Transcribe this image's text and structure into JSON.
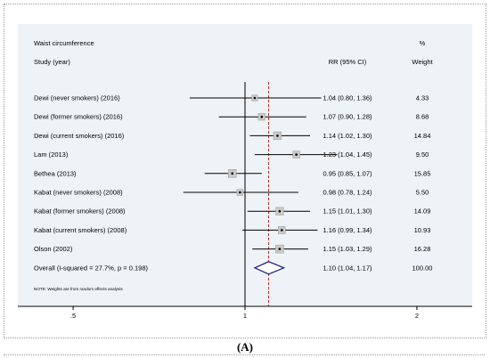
{
  "chart_data": {
    "type": "forest",
    "title": "Waist circumference",
    "columns": {
      "study": "Study (year)",
      "rr": "RR (95% CI)",
      "weight_header_top": "%",
      "weight_header": "Weight"
    },
    "studies": [
      {
        "label": "Dewi (never smokers) (2016)",
        "rr": 1.04,
        "lo": 0.8,
        "hi": 1.36,
        "ci_text": "1.04 (0.80, 1.36)",
        "weight": "4.33"
      },
      {
        "label": "Dewi (former smokers) (2016)",
        "rr": 1.07,
        "lo": 0.9,
        "hi": 1.28,
        "ci_text": "1.07 (0.90, 1.28)",
        "weight": "8.68"
      },
      {
        "label": "Dewi (current smokers) (2016)",
        "rr": 1.14,
        "lo": 1.02,
        "hi": 1.3,
        "ci_text": "1.14 (1.02, 1.30)",
        "weight": "14.84"
      },
      {
        "label": "Lam (2013)",
        "rr": 1.23,
        "lo": 1.04,
        "hi": 1.45,
        "ci_text": "1.23 (1.04, 1.45)",
        "weight": "9.50"
      },
      {
        "label": "Bethea (2013)",
        "rr": 0.95,
        "lo": 0.85,
        "hi": 1.07,
        "ci_text": "0.95 (0.85, 1.07)",
        "weight": "15.85"
      },
      {
        "label": "Kabat (never smokers) (2008)",
        "rr": 0.98,
        "lo": 0.78,
        "hi": 1.24,
        "ci_text": "0.98 (0.78, 1.24)",
        "weight": "5.50"
      },
      {
        "label": "Kabat (former smokers) (2008)",
        "rr": 1.15,
        "lo": 1.01,
        "hi": 1.3,
        "ci_text": "1.15 (1.01, 1.30)",
        "weight": "14.09"
      },
      {
        "label": "Kabat (current smokers) (2008)",
        "rr": 1.16,
        "lo": 0.99,
        "hi": 1.34,
        "ci_text": "1.16 (0.99, 1.34)",
        "weight": "10.93"
      },
      {
        "label": "Olson (2002)",
        "rr": 1.15,
        "lo": 1.03,
        "hi": 1.29,
        "ci_text": "1.15 (1.03, 1.29)",
        "weight": "16.28"
      }
    ],
    "overall": {
      "label": "Overall  (I-squared = 27.7%, p = 0.198)",
      "rr": 1.1,
      "lo": 1.04,
      "hi": 1.17,
      "ci_text": "1.10 (1.04, 1.17)",
      "weight": "100.00"
    },
    "note": "NOTE: Weights are from random effects analysis",
    "x_scale": "log",
    "xlim": [
      0.4,
      2.5
    ],
    "x_ticks": [
      {
        "value": 0.5,
        "label": ".5"
      },
      {
        "value": 1,
        "label": "1"
      },
      {
        "value": 2,
        "label": "2"
      }
    ],
    "reference_line": 1,
    "overall_line": 1.1,
    "colors": {
      "background": "#eef3f7",
      "marker_fill": "#c9c9c9",
      "diamond": "#1a1a7a",
      "dashed_line": "#cc2222",
      "ci_line": "#000000"
    }
  },
  "caption": "(A)"
}
